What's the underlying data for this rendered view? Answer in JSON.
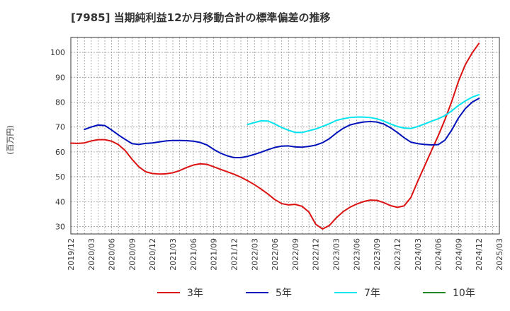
{
  "chart_data": {
    "type": "line",
    "title": "[7985]  当期純利益12か月移動合計の標準偏差の推移",
    "ylabel": "(百万円)",
    "xlabel": "",
    "x_ticks": [
      "2019/12",
      "2020/03",
      "2020/06",
      "2020/09",
      "2020/12",
      "2021/03",
      "2021/06",
      "2021/09",
      "2021/12",
      "2022/03",
      "2022/06",
      "2022/09",
      "2022/12",
      "2023/03",
      "2023/06",
      "2023/09",
      "2023/12",
      "2024/03",
      "2024/06",
      "2024/09",
      "2024/12",
      "2025/03"
    ],
    "y_ticks": [
      30,
      40,
      50,
      60,
      70,
      80,
      90,
      100
    ],
    "ylim": [
      27,
      106
    ],
    "grid": true,
    "legend_position": "bottom",
    "series": [
      {
        "name": "3年",
        "color": "#dd1111",
        "points": [
          [
            "2019/12",
            63.5
          ],
          [
            "2020/01",
            63.4
          ],
          [
            "2020/02",
            63.6
          ],
          [
            "2020/03",
            64.4
          ],
          [
            "2020/04",
            64.9
          ],
          [
            "2020/05",
            64.9
          ],
          [
            "2020/06",
            64.3
          ],
          [
            "2020/07",
            62.9
          ],
          [
            "2020/08",
            60.5
          ],
          [
            "2020/09",
            57.0
          ],
          [
            "2020/10",
            54.0
          ],
          [
            "2020/11",
            52.0
          ],
          [
            "2020/12",
            51.3
          ],
          [
            "2021/01",
            51.1
          ],
          [
            "2021/02",
            51.2
          ],
          [
            "2021/03",
            51.6
          ],
          [
            "2021/04",
            52.5
          ],
          [
            "2021/05",
            53.7
          ],
          [
            "2021/06",
            54.7
          ],
          [
            "2021/07",
            55.2
          ],
          [
            "2021/08",
            55.0
          ],
          [
            "2021/09",
            54.0
          ],
          [
            "2021/10",
            53.0
          ],
          [
            "2021/11",
            52.0
          ],
          [
            "2021/12",
            51.0
          ],
          [
            "2022/01",
            49.8
          ],
          [
            "2022/02",
            48.4
          ],
          [
            "2022/03",
            46.8
          ],
          [
            "2022/04",
            45.0
          ],
          [
            "2022/05",
            43.0
          ],
          [
            "2022/06",
            40.8
          ],
          [
            "2022/07",
            39.2
          ],
          [
            "2022/08",
            38.7
          ],
          [
            "2022/09",
            38.9
          ],
          [
            "2022/10",
            38.1
          ],
          [
            "2022/11",
            35.8
          ],
          [
            "2022/12",
            30.9
          ],
          [
            "2023/01",
            29.0
          ],
          [
            "2023/02",
            30.4
          ],
          [
            "2023/03",
            33.4
          ],
          [
            "2023/04",
            35.9
          ],
          [
            "2023/05",
            37.7
          ],
          [
            "2023/06",
            39.0
          ],
          [
            "2023/07",
            40.0
          ],
          [
            "2023/08",
            40.6
          ],
          [
            "2023/09",
            40.5
          ],
          [
            "2023/10",
            39.6
          ],
          [
            "2023/11",
            38.4
          ],
          [
            "2023/12",
            37.7
          ],
          [
            "2024/01",
            38.3
          ],
          [
            "2024/02",
            41.7
          ],
          [
            "2024/03",
            48.2
          ],
          [
            "2024/04",
            54.3
          ],
          [
            "2024/05",
            60.4
          ],
          [
            "2024/06",
            66.4
          ],
          [
            "2024/07",
            73.0
          ],
          [
            "2024/08",
            80.3
          ],
          [
            "2024/09",
            88.5
          ],
          [
            "2024/10",
            95.1
          ],
          [
            "2024/11",
            99.8
          ],
          [
            "2024/12",
            103.6
          ]
        ]
      },
      {
        "name": "5年",
        "color": "#0011bb",
        "points": [
          [
            "2020/02",
            69.0
          ],
          [
            "2020/03",
            70.0
          ],
          [
            "2020/04",
            70.8
          ],
          [
            "2020/05",
            70.6
          ],
          [
            "2020/06",
            68.8
          ],
          [
            "2020/07",
            66.8
          ],
          [
            "2020/08",
            65.0
          ],
          [
            "2020/09",
            63.3
          ],
          [
            "2020/10",
            63.0
          ],
          [
            "2020/11",
            63.4
          ],
          [
            "2020/12",
            63.6
          ],
          [
            "2021/01",
            64.0
          ],
          [
            "2021/02",
            64.4
          ],
          [
            "2021/03",
            64.6
          ],
          [
            "2021/04",
            64.6
          ],
          [
            "2021/05",
            64.5
          ],
          [
            "2021/06",
            64.3
          ],
          [
            "2021/07",
            63.8
          ],
          [
            "2021/08",
            62.8
          ],
          [
            "2021/09",
            61.0
          ],
          [
            "2021/10",
            59.5
          ],
          [
            "2021/11",
            58.4
          ],
          [
            "2021/12",
            57.7
          ],
          [
            "2022/01",
            57.7
          ],
          [
            "2022/02",
            58.2
          ],
          [
            "2022/03",
            59.0
          ],
          [
            "2022/04",
            59.9
          ],
          [
            "2022/05",
            60.9
          ],
          [
            "2022/06",
            61.8
          ],
          [
            "2022/07",
            62.3
          ],
          [
            "2022/08",
            62.4
          ],
          [
            "2022/09",
            62.0
          ],
          [
            "2022/10",
            61.9
          ],
          [
            "2022/11",
            62.2
          ],
          [
            "2022/12",
            62.7
          ],
          [
            "2023/01",
            63.7
          ],
          [
            "2023/02",
            65.3
          ],
          [
            "2023/03",
            67.5
          ],
          [
            "2023/04",
            69.4
          ],
          [
            "2023/05",
            70.8
          ],
          [
            "2023/06",
            71.5
          ],
          [
            "2023/07",
            72.0
          ],
          [
            "2023/08",
            72.2
          ],
          [
            "2023/09",
            72.0
          ],
          [
            "2023/10",
            71.2
          ],
          [
            "2023/11",
            69.7
          ],
          [
            "2023/12",
            67.8
          ],
          [
            "2024/01",
            65.7
          ],
          [
            "2024/02",
            63.9
          ],
          [
            "2024/03",
            63.3
          ],
          [
            "2024/04",
            63.0
          ],
          [
            "2024/05",
            62.8
          ],
          [
            "2024/06",
            62.9
          ],
          [
            "2024/07",
            64.7
          ],
          [
            "2024/08",
            68.8
          ],
          [
            "2024/09",
            73.7
          ],
          [
            "2024/10",
            77.4
          ],
          [
            "2024/11",
            80.0
          ],
          [
            "2024/12",
            81.5
          ]
        ]
      },
      {
        "name": "7年",
        "color": "#00e5ee",
        "points": [
          [
            "2022/02",
            71.0
          ],
          [
            "2022/03",
            71.8
          ],
          [
            "2022/04",
            72.5
          ],
          [
            "2022/05",
            72.4
          ],
          [
            "2022/06",
            71.2
          ],
          [
            "2022/07",
            69.8
          ],
          [
            "2022/08",
            68.7
          ],
          [
            "2022/09",
            67.8
          ],
          [
            "2022/10",
            67.8
          ],
          [
            "2022/11",
            68.5
          ],
          [
            "2022/12",
            69.2
          ],
          [
            "2023/01",
            70.2
          ],
          [
            "2023/02",
            71.3
          ],
          [
            "2023/03",
            72.6
          ],
          [
            "2023/04",
            73.3
          ],
          [
            "2023/05",
            73.8
          ],
          [
            "2023/06",
            74.0
          ],
          [
            "2023/07",
            74.0
          ],
          [
            "2023/08",
            73.8
          ],
          [
            "2023/09",
            73.3
          ],
          [
            "2023/10",
            72.4
          ],
          [
            "2023/11",
            71.2
          ],
          [
            "2023/12",
            70.2
          ],
          [
            "2024/01",
            69.6
          ],
          [
            "2024/02",
            69.4
          ],
          [
            "2024/03",
            70.2
          ],
          [
            "2024/04",
            71.2
          ],
          [
            "2024/05",
            72.3
          ],
          [
            "2024/06",
            73.3
          ],
          [
            "2024/07",
            74.6
          ],
          [
            "2024/08",
            76.5
          ],
          [
            "2024/09",
            78.7
          ],
          [
            "2024/10",
            80.5
          ],
          [
            "2024/11",
            82.0
          ],
          [
            "2024/12",
            83.0
          ]
        ]
      },
      {
        "name": "10年",
        "color": "#228822",
        "points": []
      }
    ]
  }
}
